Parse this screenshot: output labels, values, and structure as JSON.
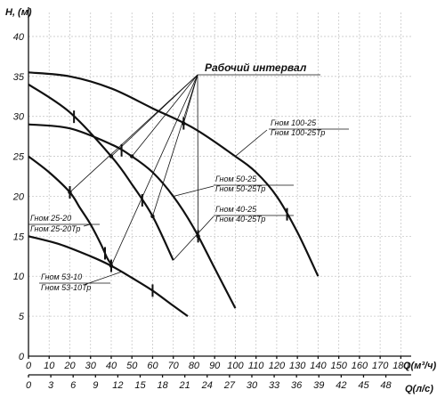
{
  "chart_data": {
    "type": "line",
    "ylabel": "H, (м)",
    "xlabel": "Q(м³/ч)",
    "xlabel2": "Q(л/с)",
    "ylim": [
      0,
      43
    ],
    "xlim": [
      0,
      185
    ],
    "x2lim": [
      0,
      51.4
    ],
    "yticks": [
      0,
      5,
      10,
      15,
      20,
      25,
      30,
      35,
      40
    ],
    "xticks": [
      0,
      10,
      20,
      30,
      40,
      50,
      60,
      70,
      80,
      90,
      100,
      110,
      120,
      130,
      140,
      150,
      160,
      170,
      180
    ],
    "x2ticks": [
      0,
      3,
      6,
      9,
      12,
      15,
      18,
      21,
      24,
      27,
      30,
      33,
      36,
      39,
      42,
      45,
      48
    ],
    "grid": true,
    "annotation": "Рабочий интервал",
    "series": [
      {
        "name": "Гном 53-10 / Гном 53-10Тр",
        "x": [
          0,
          15,
          30,
          40,
          50,
          60,
          70,
          77
        ],
        "y": [
          15,
          14,
          12.5,
          11.3,
          9.8,
          8.2,
          6.3,
          5
        ],
        "work": [
          40,
          60
        ]
      },
      {
        "name": "Гном 25-20 / Гном 25-20Тр",
        "x": [
          0,
          10,
          20,
          25,
          30,
          35,
          38,
          40
        ],
        "y": [
          25,
          23,
          20.5,
          18.5,
          16.5,
          14,
          12.3,
          11.5
        ],
        "work": [
          20,
          37
        ]
      },
      {
        "name": "Гном 40-25 / Гном 40-25Тр",
        "x": [
          0,
          20,
          40,
          50,
          60,
          70,
          80,
          90,
          100
        ],
        "y": [
          29,
          28.5,
          26.5,
          25,
          23,
          20,
          16,
          11,
          6
        ],
        "work": [
          45,
          82
        ]
      },
      {
        "name": "Гном 50-25 / Гном 50-25Тр",
        "x": [
          0,
          20,
          40,
          50,
          60,
          70
        ],
        "y": [
          34,
          30.5,
          25,
          21.5,
          17.5,
          12
        ],
        "work": [
          22,
          55
        ]
      },
      {
        "name": "Гном 100-25 / Гном 100-25Тр",
        "x": [
          0,
          20,
          40,
          60,
          80,
          100,
          110,
          120,
          130,
          140
        ],
        "y": [
          35.5,
          35,
          33.5,
          31,
          28.5,
          25,
          23,
          20,
          15.5,
          10
        ],
        "work": [
          75,
          125
        ]
      }
    ],
    "labels": [
      {
        "line1": "Гном 100-25",
        "line2": "Гном 100-25Тр"
      },
      {
        "line1": "Гном 50-25",
        "line2": "Гном 50-25Тр"
      },
      {
        "line1": "Гном 40-25",
        "line2": "Гном 40-25Тр"
      },
      {
        "line1": "Гном 25-20",
        "line2": "Гном 25-20Тр"
      },
      {
        "line1": "Гном 53-10",
        "line2": "Гном 53-10Тр"
      }
    ]
  }
}
